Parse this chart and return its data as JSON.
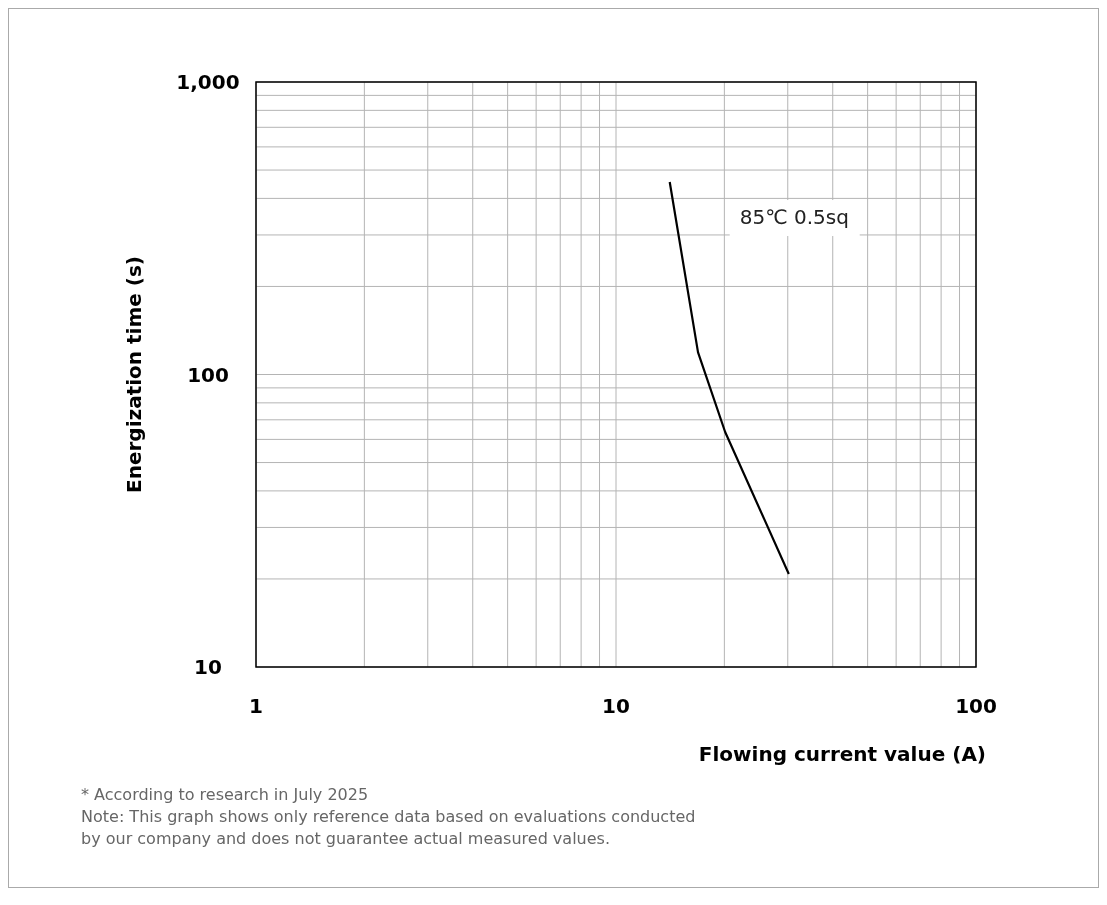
{
  "chart_data": {
    "type": "line",
    "xlabel": "Flowing current value (A)",
    "ylabel": "Energization time (s)",
    "log": "xy",
    "grid": true,
    "marker": "none",
    "line_style": "solid",
    "xlim": [
      1,
      100
    ],
    "xticks": [
      1,
      10,
      100
    ],
    "ylim": [
      10,
      1000
    ],
    "yticks": [
      10,
      100,
      {
        "value": 1000,
        "label": "1,000"
      }
    ],
    "series": [
      {
        "name": "85℃ 0.5sq",
        "color": "#000000",
        "x": [
          14.1,
          16.9,
          20.1,
          30.2
        ],
        "values": [
          455,
          119,
          63.6,
          20.8
        ]
      }
    ],
    "annotations": [
      "* According to research in July 2025",
      "Note: This graph shows only reference data based on evaluations conducted by our company and does not guarantee actual measured values."
    ]
  }
}
